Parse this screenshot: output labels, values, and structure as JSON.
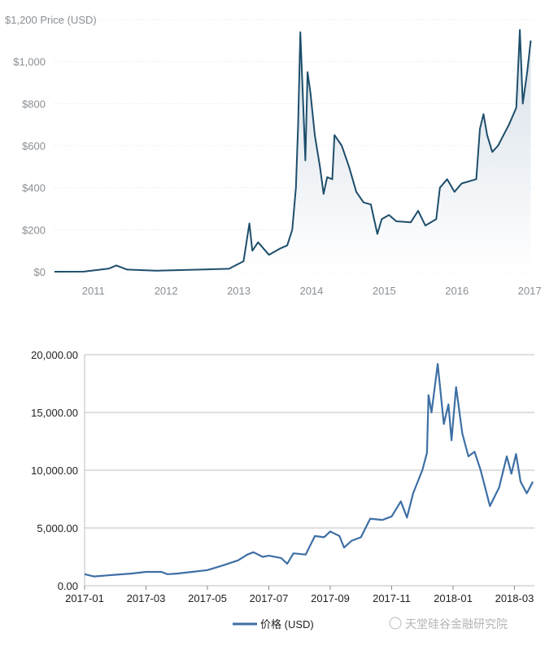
{
  "chart_data": [
    {
      "type": "area",
      "title": "Price (USD)",
      "ylabel": "Price (USD)",
      "xlabel": "",
      "xlim": [
        2010.6,
        2017.2
      ],
      "ylim": [
        0,
        1200
      ],
      "yticks": [
        0,
        200,
        400,
        600,
        800,
        1000,
        1200
      ],
      "ytick_labels": [
        "$0",
        "$200",
        "$400",
        "$600",
        "$800",
        "$1,000",
        "$1,200"
      ],
      "xticks": [
        2011,
        2012,
        2013,
        2014,
        2015,
        2016,
        2017
      ],
      "xtick_labels": [
        "2011",
        "2012",
        "2013",
        "2014",
        "2015",
        "2016",
        "2017"
      ],
      "grid": true,
      "colors": {
        "line": "#1d4e6b",
        "fill_top": "#d6dfe8",
        "fill_bottom": "#ffffff"
      },
      "series": [
        {
          "name": "Price (USD)",
          "x": [
            2010.6,
            2011.0,
            2011.35,
            2011.45,
            2011.6,
            2012.0,
            2012.6,
            2013.0,
            2013.2,
            2013.28,
            2013.32,
            2013.4,
            2013.55,
            2013.7,
            2013.8,
            2013.87,
            2013.92,
            2013.95,
            2013.98,
            2014.02,
            2014.05,
            2014.08,
            2014.12,
            2014.18,
            2014.25,
            2014.3,
            2014.35,
            2014.42,
            2014.45,
            2014.55,
            2014.65,
            2014.75,
            2014.85,
            2014.95,
            2015.04,
            2015.1,
            2015.2,
            2015.3,
            2015.5,
            2015.6,
            2015.7,
            2015.85,
            2015.9,
            2016.0,
            2016.1,
            2016.2,
            2016.4,
            2016.45,
            2016.5,
            2016.55,
            2016.62,
            2016.7,
            2016.85,
            2016.95,
            2017.0,
            2017.04,
            2017.1,
            2017.15
          ],
          "y": [
            0,
            0.3,
            15,
            30,
            10,
            5,
            10,
            14,
            50,
            230,
            100,
            140,
            80,
            110,
            125,
            200,
            400,
            700,
            1140,
            800,
            530,
            950,
            850,
            650,
            500,
            370,
            450,
            440,
            650,
            600,
            500,
            380,
            330,
            320,
            180,
            250,
            270,
            240,
            235,
            290,
            220,
            250,
            400,
            440,
            380,
            420,
            440,
            680,
            750,
            650,
            570,
            600,
            700,
            780,
            1150,
            800,
            950,
            1100
          ]
        }
      ]
    },
    {
      "type": "line",
      "title": "",
      "xlabel": "",
      "ylabel": "",
      "xlim_months_from_2017_01": [
        0,
        14.65
      ],
      "ylim": [
        0,
        20000
      ],
      "yticks": [
        0,
        5000,
        10000,
        15000,
        20000
      ],
      "ytick_labels": [
        "0.00",
        "5,000.00",
        "10,000.00",
        "15,000.00",
        "20,000.00"
      ],
      "xticks": [
        0,
        2,
        4,
        6,
        8,
        10,
        12,
        14
      ],
      "xtick_labels": [
        "2017-01",
        "2017-03",
        "2017-05",
        "2017-07",
        "2017-09",
        "2017-11",
        "2018-01",
        "2018-03"
      ],
      "grid": true,
      "legend": {
        "position": "bottom-center",
        "label": "价格 (USD)"
      },
      "watermark": "天堂硅谷金融研究院",
      "colors": {
        "line": "#3e6fa5",
        "grid": "#bfbfbf"
      },
      "series": [
        {
          "name": "价格 (USD)",
          "x": [
            0,
            0.3,
            1,
            1.5,
            2,
            2.5,
            2.7,
            3,
            3.5,
            4,
            4.5,
            5,
            5.3,
            5.5,
            5.8,
            6,
            6.4,
            6.6,
            6.8,
            7.2,
            7.5,
            7.8,
            8,
            8.3,
            8.45,
            8.7,
            9,
            9.3,
            9.7,
            10,
            10.3,
            10.5,
            10.7,
            11,
            11.15,
            11.2,
            11.3,
            11.5,
            11.7,
            11.85,
            11.95,
            12.1,
            12.3,
            12.5,
            12.7,
            12.9,
            13.2,
            13.5,
            13.75,
            13.9,
            14.05,
            14.2,
            14.4,
            14.6
          ],
          "y": [
            1000,
            800,
            950,
            1050,
            1200,
            1200,
            1000,
            1050,
            1200,
            1350,
            1750,
            2200,
            2700,
            2900,
            2500,
            2600,
            2400,
            1900,
            2800,
            2700,
            4300,
            4200,
            4700,
            4300,
            3300,
            3900,
            4200,
            5800,
            5700,
            6000,
            7300,
            5900,
            8000,
            10000,
            11500,
            16500,
            15000,
            19200,
            14000,
            15700,
            12600,
            17200,
            13200,
            11200,
            11600,
            10000,
            6900,
            8500,
            11200,
            9700,
            11400,
            9000,
            8000,
            9000
          ]
        }
      ]
    }
  ]
}
